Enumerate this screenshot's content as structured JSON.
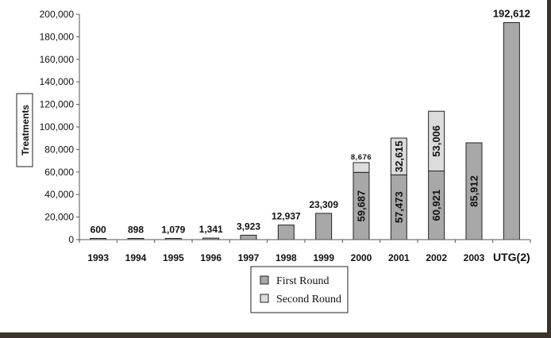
{
  "chart_data": {
    "type": "bar",
    "stacked": true,
    "ylabel": "Treatments",
    "ylim": [
      0,
      200000
    ],
    "yticks": [
      "0",
      "20,000",
      "40,000",
      "60,000",
      "80,000",
      "100,000",
      "120,000",
      "140,000",
      "160,000",
      "180,000",
      "200,000"
    ],
    "categories": [
      "1993",
      "1994",
      "1995",
      "1996",
      "1997",
      "1998",
      "1999",
      "2000",
      "2001",
      "2002",
      "2003",
      "UTG(2)"
    ],
    "series": [
      {
        "name": "First Round",
        "color": "#a8a8a8",
        "values": [
          600,
          898,
          1079,
          1341,
          3923,
          12937,
          23309,
          59687,
          57473,
          60921,
          85912,
          192612
        ],
        "labels": [
          "600",
          "898",
          "1,079",
          "1,341",
          "3,923",
          "12,937",
          "23,309",
          "59,687",
          "57,473",
          "60,921",
          "85,912",
          "192,612"
        ]
      },
      {
        "name": "Second Round",
        "color": "#dcdcdc",
        "values": [
          0,
          0,
          0,
          0,
          0,
          0,
          0,
          8676,
          32615,
          53006,
          0,
          0
        ],
        "labels": [
          "",
          "",
          "",
          "",
          "",
          "",
          "",
          "8,676",
          "32,615",
          "53,006",
          "",
          ""
        ]
      }
    ],
    "legend": {
      "placement": "bottom"
    }
  }
}
